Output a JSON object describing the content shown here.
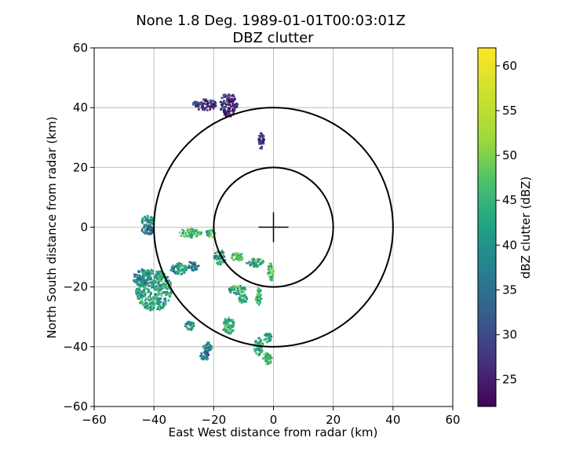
{
  "chart_data": {
    "type": "heatmap",
    "title": "None 1.8 Deg. 1989-01-01T00:03:01Z",
    "subtitle": "DBZ clutter",
    "xlabel": "East West distance from radar (km)",
    "ylabel": "North South distance from radar (km)",
    "xlim": [
      -60,
      60
    ],
    "ylim": [
      -60,
      60
    ],
    "xticks": [
      -60,
      -40,
      -20,
      0,
      20,
      40,
      60
    ],
    "yticks": [
      -60,
      -40,
      -20,
      0,
      20,
      40,
      60
    ],
    "grid": true,
    "range_rings_km": [
      20,
      40
    ],
    "radar_center": [
      0,
      0
    ],
    "colorbar": {
      "label": "dBZ clutter (dBZ)",
      "colormap": "viridis",
      "range": [
        22,
        62
      ],
      "ticks": [
        25,
        30,
        35,
        40,
        45,
        50,
        55,
        60
      ]
    },
    "clutter_regions": [
      {
        "x": -23,
        "y": 41,
        "rx": 4,
        "ry": 2,
        "dbz": 28
      },
      {
        "x": -15,
        "y": 41,
        "rx": 3,
        "ry": 4,
        "dbz": 27
      },
      {
        "x": -4,
        "y": 29,
        "rx": 1,
        "ry": 3,
        "dbz": 29
      },
      {
        "x": -42,
        "y": 2,
        "rx": 2,
        "ry": 2,
        "dbz": 40
      },
      {
        "x": -42,
        "y": -1,
        "rx": 2,
        "ry": 1.5,
        "dbz": 35
      },
      {
        "x": -28,
        "y": -2,
        "rx": 4,
        "ry": 1.5,
        "dbz": 47
      },
      {
        "x": -21,
        "y": -2,
        "rx": 1.5,
        "ry": 1.5,
        "dbz": 45
      },
      {
        "x": -18,
        "y": -10,
        "rx": 2,
        "ry": 2.5,
        "dbz": 42
      },
      {
        "x": -12,
        "y": -10,
        "rx": 2,
        "ry": 1.5,
        "dbz": 45
      },
      {
        "x": -6,
        "y": -12,
        "rx": 3,
        "ry": 1.5,
        "dbz": 43
      },
      {
        "x": -1,
        "y": -15,
        "rx": 1,
        "ry": 3,
        "dbz": 47
      },
      {
        "x": -40,
        "y": -21,
        "rx": 6,
        "ry": 7,
        "dbz": 42
      },
      {
        "x": -44,
        "y": -17,
        "rx": 3,
        "ry": 3,
        "dbz": 38
      },
      {
        "x": -32,
        "y": -14,
        "rx": 3,
        "ry": 2,
        "dbz": 40
      },
      {
        "x": -27,
        "y": -13,
        "rx": 2,
        "ry": 1.5,
        "dbz": 37
      },
      {
        "x": -12,
        "y": -21,
        "rx": 3,
        "ry": 1.5,
        "dbz": 44
      },
      {
        "x": -10,
        "y": -24,
        "rx": 1.5,
        "ry": 1.5,
        "dbz": 42
      },
      {
        "x": -5,
        "y": -23,
        "rx": 1,
        "ry": 3,
        "dbz": 45
      },
      {
        "x": -15,
        "y": -33,
        "rx": 2,
        "ry": 3,
        "dbz": 44
      },
      {
        "x": -28,
        "y": -33,
        "rx": 1.5,
        "ry": 1.5,
        "dbz": 40
      },
      {
        "x": -22,
        "y": -40,
        "rx": 1.5,
        "ry": 1.5,
        "dbz": 38
      },
      {
        "x": -23,
        "y": -43,
        "rx": 1.5,
        "ry": 1.5,
        "dbz": 35
      },
      {
        "x": -5,
        "y": -40,
        "rx": 1.5,
        "ry": 3,
        "dbz": 44
      },
      {
        "x": -2,
        "y": -44,
        "rx": 1.5,
        "ry": 2,
        "dbz": 47
      },
      {
        "x": -2,
        "y": -37,
        "rx": 1.5,
        "ry": 1.5,
        "dbz": 42
      }
    ]
  }
}
